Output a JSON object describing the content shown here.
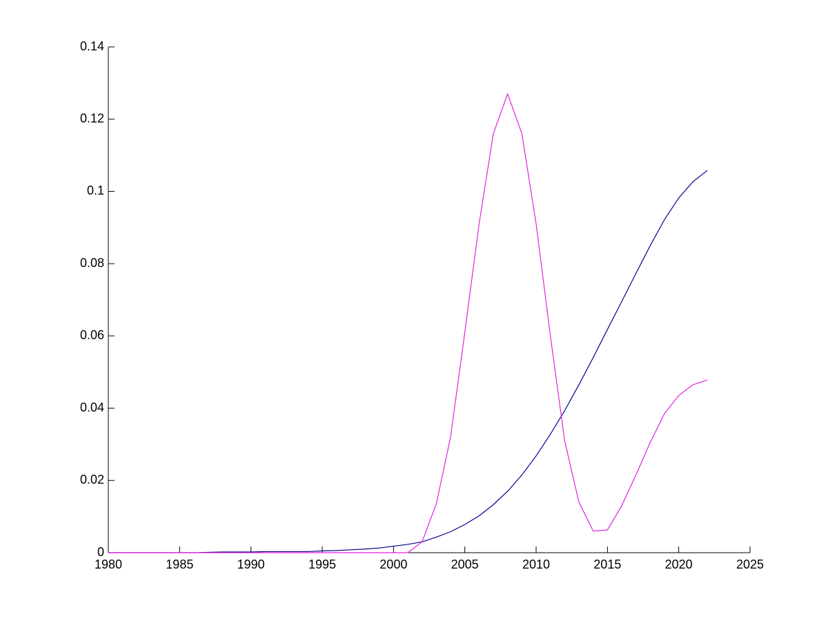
{
  "chart_data": {
    "type": "line",
    "x": [
      1980,
      1981,
      1982,
      1983,
      1984,
      1985,
      1986,
      1987,
      1988,
      1989,
      1990,
      1991,
      1992,
      1993,
      1994,
      1995,
      1996,
      1997,
      1998,
      1999,
      2000,
      2001,
      2002,
      2003,
      2004,
      2005,
      2006,
      2007,
      2008,
      2009,
      2010,
      2011,
      2012,
      2013,
      2014,
      2015,
      2016,
      2017,
      2018,
      2019,
      2020,
      2021,
      2022
    ],
    "series": [
      {
        "color": "#00008b",
        "values": [
          0,
          0,
          0,
          0,
          0,
          0,
          0,
          0.0001,
          0.0002,
          0.0002,
          0.0002,
          0.0003,
          0.0003,
          0.0003,
          0.0003,
          0.0005,
          0.0006,
          0.0008,
          0.001,
          0.0013,
          0.0018,
          0.0023,
          0.003,
          0.0043,
          0.0058,
          0.0078,
          0.0102,
          0.0133,
          0.017,
          0.0215,
          0.0268,
          0.0328,
          0.0393,
          0.0465,
          0.054,
          0.0618,
          0.0695,
          0.0773,
          0.085,
          0.0922,
          0.0982,
          0.1027,
          0.1058
        ]
      },
      {
        "color": "#e020e0",
        "values": [
          0,
          0,
          0,
          0,
          0,
          0,
          0,
          0,
          0,
          0,
          0,
          0,
          0,
          0,
          0,
          0,
          0,
          0,
          0,
          0,
          0,
          0,
          0.003,
          0.0135,
          0.032,
          0.061,
          0.091,
          0.116,
          0.127,
          0.116,
          0.091,
          0.06,
          0.031,
          0.014,
          0.006,
          0.0063,
          0.013,
          0.0215,
          0.0305,
          0.0385,
          0.0435,
          0.0465,
          0.0478
        ]
      }
    ],
    "xlim": [
      1980,
      2025
    ],
    "xticks": [
      1980,
      1985,
      1990,
      1995,
      2000,
      2005,
      2010,
      2015,
      2020,
      2025
    ],
    "ylim": [
      0,
      0.14
    ],
    "yticks": [
      0,
      0.02,
      0.04,
      0.06,
      0.08,
      0.1,
      0.12,
      0.14
    ]
  }
}
